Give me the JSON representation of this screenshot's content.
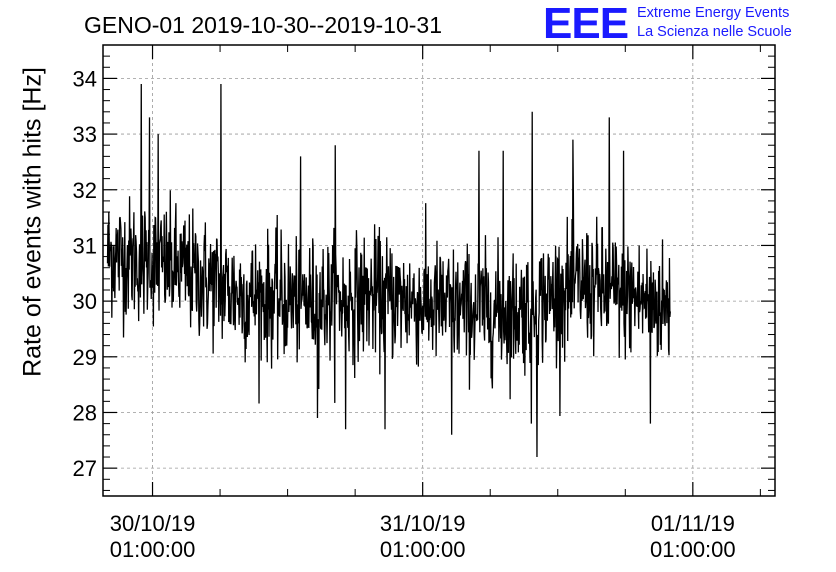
{
  "chart_data": {
    "type": "line",
    "title": "GENO-01 2019-10-30--2019-10-31",
    "xlabel": "",
    "ylabel": "Rate of events with hits [Hz]",
    "ylim": [
      26.5,
      34.6
    ],
    "xlim_hours": [
      -3.4,
      56.3
    ],
    "grid": true,
    "legend": "none",
    "line_color": "#000000",
    "logo": {
      "mark": "EEE",
      "line1": "Extreme Energy Events",
      "line2": "La Scienza nelle Scuole",
      "color": "#1a1aff"
    },
    "y_ticks": [
      "27",
      "28",
      "29",
      "30",
      "31",
      "32",
      "33",
      "34"
    ],
    "x_ticks": [
      {
        "date": "30/10/19",
        "time": "01:00:00"
      },
      {
        "date": "31/10/19",
        "time": "01:00:00"
      },
      {
        "date": "01/11/19",
        "time": "01:00:00"
      }
    ],
    "series": [
      {
        "x_start": "2019-10-29 21:00",
        "x_end": "2019-10-31 23:00",
        "trend": [
          {
            "x": "2019-10-29 21:00",
            "y": 30.85
          },
          {
            "x": "2019-10-30 03:00",
            "y": 30.6
          },
          {
            "x": "2019-10-30 09:00",
            "y": 30.1
          },
          {
            "x": "2019-10-30 15:00",
            "y": 30.0
          },
          {
            "x": "2019-10-30 21:00",
            "y": 30.1
          },
          {
            "x": "2019-10-31 03:00",
            "y": 29.9
          },
          {
            "x": "2019-10-31 09:00",
            "y": 29.8
          },
          {
            "x": "2019-10-31 15:00",
            "y": 30.3
          },
          {
            "x": "2019-10-31 21:00",
            "y": 30.0
          },
          {
            "x": "2019-10-31 23:00",
            "y": 29.9
          }
        ],
        "spikes": [
          {
            "x": "2019-10-30 00:00",
            "y": 33.9
          },
          {
            "x": "2019-10-30 00:45",
            "y": 33.3
          },
          {
            "x": "2019-10-30 01:30",
            "y": 33.0
          },
          {
            "x": "2019-10-30 07:05",
            "y": 33.9
          },
          {
            "x": "2019-10-30 14:10",
            "y": 32.6
          },
          {
            "x": "2019-10-30 17:15",
            "y": 32.8
          },
          {
            "x": "2019-10-31 06:00",
            "y": 32.7
          },
          {
            "x": "2019-10-31 08:10",
            "y": 32.7
          },
          {
            "x": "2019-10-31 10:45",
            "y": 33.4
          },
          {
            "x": "2019-10-31 14:20",
            "y": 32.9
          },
          {
            "x": "2019-10-31 17:35",
            "y": 33.3
          },
          {
            "x": "2019-10-31 18:50",
            "y": 32.7
          },
          {
            "x": "2019-10-31 11:10",
            "y": 27.2
          },
          {
            "x": "2019-10-31 10:40",
            "y": 27.8
          },
          {
            "x": "2019-10-31 03:35",
            "y": 27.6
          },
          {
            "x": "2019-10-30 21:40",
            "y": 27.7
          },
          {
            "x": "2019-10-30 18:10",
            "y": 27.7
          },
          {
            "x": "2019-10-30 15:40",
            "y": 27.9
          },
          {
            "x": "2019-10-31 21:15",
            "y": 27.8
          }
        ]
      }
    ]
  }
}
